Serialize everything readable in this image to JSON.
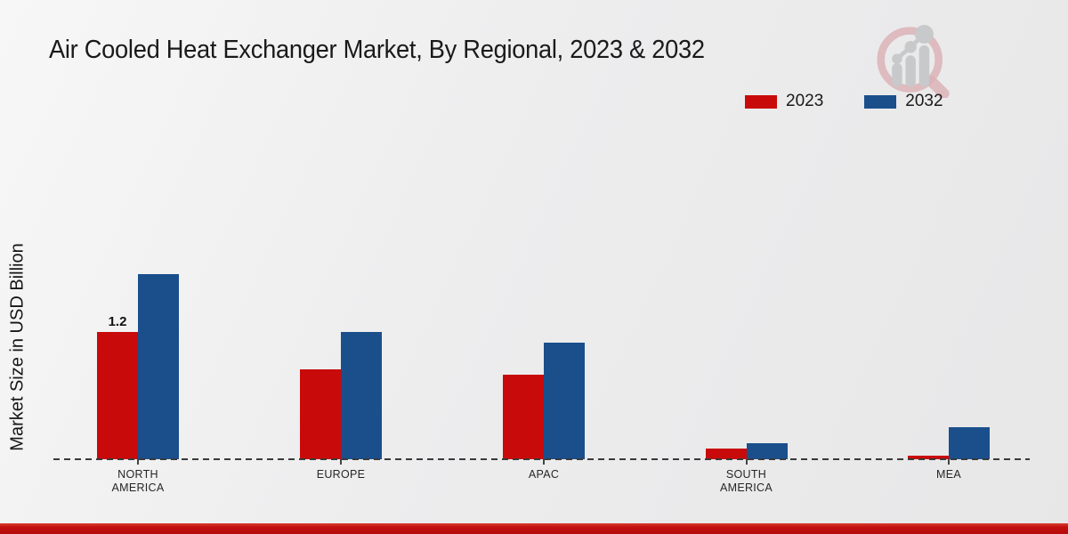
{
  "header": {
    "title": "Air Cooled Heat Exchanger Market, By Regional, 2023 & 2032"
  },
  "legend": {
    "items": [
      {
        "label": "2023",
        "color": "#c90a0a"
      },
      {
        "label": "2032",
        "color": "#1a4f8c"
      }
    ]
  },
  "chart_data": {
    "type": "bar",
    "title": "Air Cooled Heat Exchanger Market, By Regional, 2023 & 2032",
    "xlabel": "",
    "ylabel": "Market Size in USD Billion",
    "categories": [
      "NORTH\nAMERICA",
      "EUROPE",
      "APAC",
      "SOUTH\nAMERICA",
      "MEA"
    ],
    "series": [
      {
        "name": "2023",
        "color": "#c90a0a",
        "values": [
          1.2,
          0.85,
          0.8,
          0.1,
          0.03
        ]
      },
      {
        "name": "2032",
        "color": "#1a4f8c",
        "values": [
          1.75,
          1.2,
          1.1,
          0.15,
          0.3
        ]
      }
    ],
    "annotations": [
      {
        "category_index": 0,
        "series_index": 0,
        "text": "1.2"
      }
    ],
    "ylim": [
      0,
      2
    ],
    "y_axis_visible": false,
    "grid": false,
    "baseline_style": "dashed",
    "legend_position": "top-right"
  },
  "footer": {
    "accent_color": "#c31010"
  },
  "icons": {
    "logo": "magnifier-bar-chart-icon"
  }
}
